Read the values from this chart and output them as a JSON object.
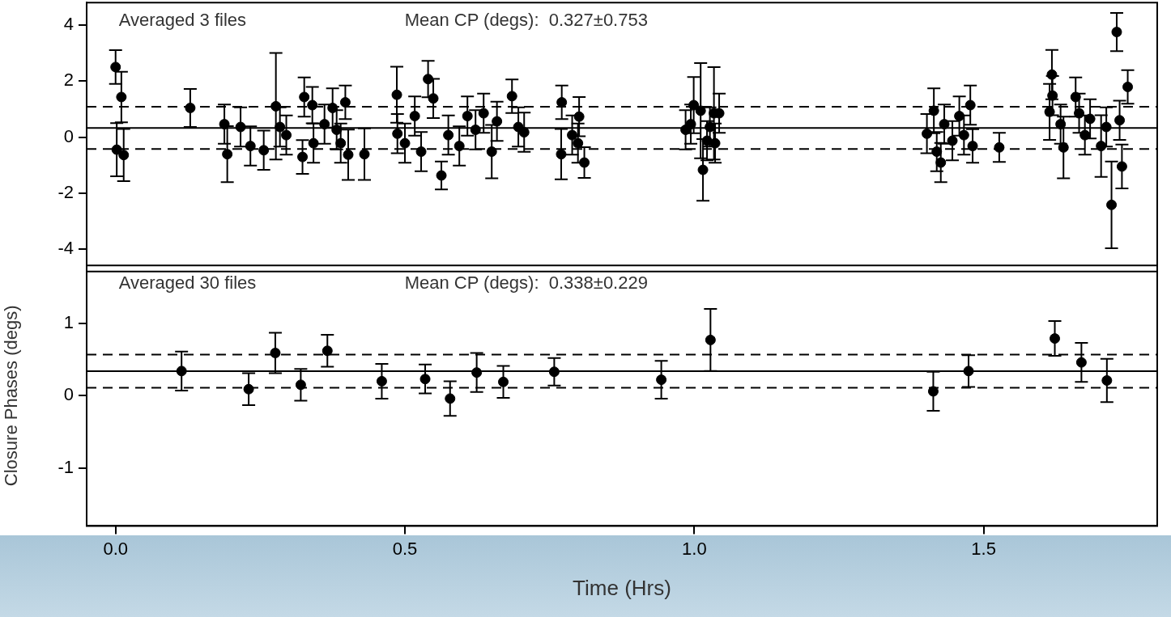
{
  "chart_data": [
    {
      "type": "scatter",
      "color": "#000000",
      "marker": "circle",
      "tick_labels": "y",
      "annotations": [
        "Averaged 3 files",
        "Mean CP (degs):  0.327±0.753"
      ],
      "xlim": [
        -0.05,
        1.8
      ],
      "ylim": [
        -4.8,
        4.8
      ],
      "yticks": [
        -4,
        -2,
        0,
        2,
        4
      ],
      "ref_lines": [
        {
          "axis": "y",
          "value": 0.327,
          "line_style": "solid",
          "color": "#000000"
        },
        {
          "axis": "y",
          "value": 1.08,
          "line_style": "dashed",
          "color": "#000000"
        },
        {
          "axis": "y",
          "value": -0.426,
          "line_style": "dashed",
          "color": "#000000"
        }
      ],
      "x": [
        0.0,
        0.01,
        0.002,
        0.014,
        0.129,
        0.193,
        0.188,
        0.216,
        0.233,
        0.256,
        0.277,
        0.284,
        0.295,
        0.326,
        0.323,
        0.34,
        0.342,
        0.361,
        0.375,
        0.382,
        0.389,
        0.397,
        0.402,
        0.43,
        0.486,
        0.54,
        0.549,
        0.487,
        0.5,
        0.517,
        0.528,
        0.563,
        0.575,
        0.594,
        0.608,
        0.622,
        0.636,
        0.65,
        0.659,
        0.685,
        0.696,
        0.706,
        0.771,
        0.77,
        0.801,
        0.789,
        0.81,
        0.799,
        1.015,
        0.999,
        1.011,
        1.034,
        0.985,
        0.994,
        1.027,
        1.043,
        1.022,
        1.036,
        1.402,
        1.414,
        1.419,
        1.426,
        1.432,
        1.446,
        1.458,
        1.466,
        1.477,
        1.481,
        1.527,
        1.618,
        1.619,
        1.614,
        1.638,
        1.633,
        1.659,
        1.665,
        1.675,
        1.684,
        1.703,
        1.712,
        1.721,
        1.73,
        1.735,
        1.739,
        1.749
      ],
      "values": [
        2.5,
        1.43,
        -0.45,
        -0.64,
        1.04,
        -0.61,
        0.46,
        0.36,
        -0.32,
        -0.47,
        1.1,
        0.36,
        0.07,
        1.43,
        -0.71,
        1.14,
        -0.22,
        0.46,
        1.04,
        0.26,
        -0.22,
        1.24,
        -0.63,
        -0.61,
        1.51,
        2.07,
        1.38,
        0.12,
        -0.22,
        0.75,
        -0.52,
        -1.37,
        0.07,
        -0.32,
        0.75,
        0.26,
        0.85,
        -0.52,
        0.56,
        1.46,
        0.36,
        0.17,
        1.24,
        -0.61,
        0.73,
        0.07,
        -0.91,
        -0.22,
        -1.17,
        1.14,
        0.94,
        0.85,
        0.26,
        0.46,
        0.36,
        0.85,
        -0.13,
        -0.22,
        0.12,
        0.94,
        -0.52,
        -0.91,
        0.46,
        -0.13,
        0.75,
        0.07,
        1.14,
        -0.32,
        -0.37,
        2.23,
        1.48,
        0.9,
        -0.37,
        0.46,
        1.43,
        0.85,
        0.07,
        0.65,
        -0.32,
        0.36,
        -2.42,
        3.75,
        0.6,
        -1.05,
        1.79
      ],
      "errors": [
        0.6,
        0.9,
        0.95,
        0.93,
        0.68,
        1.0,
        0.7,
        0.7,
        0.7,
        0.7,
        1.9,
        0.7,
        0.7,
        0.7,
        0.6,
        0.65,
        0.7,
        0.7,
        0.7,
        0.7,
        0.7,
        0.6,
        0.9,
        0.92,
        1.0,
        0.65,
        0.7,
        0.7,
        0.7,
        0.7,
        0.7,
        0.5,
        0.7,
        0.7,
        0.7,
        0.7,
        0.7,
        0.95,
        0.7,
        0.6,
        0.7,
        0.7,
        0.6,
        0.9,
        0.7,
        0.7,
        0.55,
        0.7,
        1.1,
        1.0,
        1.7,
        1.65,
        0.7,
        0.7,
        0.7,
        0.7,
        0.7,
        0.7,
        0.7,
        0.8,
        0.7,
        0.7,
        0.7,
        0.7,
        0.7,
        0.7,
        0.7,
        0.6,
        0.52,
        0.88,
        0.7,
        1.0,
        1.1,
        0.7,
        0.7,
        0.7,
        0.7,
        0.7,
        1.1,
        0.7,
        1.55,
        0.68,
        0.7,
        0.78,
        0.6
      ]
    },
    {
      "type": "scatter",
      "color": "#000000",
      "marker": "circle",
      "ylabel": "Closure Phases (degs)",
      "xlabel": "Time (Hrs)",
      "annotations": [
        "Averaged 30 files",
        "Mean CP (degs):  0.338±0.229"
      ],
      "xlim": [
        -0.05,
        1.8
      ],
      "xticks": [
        {
          "value": 0,
          "label": "0.0"
        },
        0.5,
        {
          "value": 1,
          "label": "1.0"
        },
        1.5
      ],
      "ylim": [
        -1.8,
        1.8
      ],
      "yticks": [
        -1,
        0,
        1
      ],
      "ref_lines": [
        {
          "axis": "y",
          "value": 0.338,
          "line_style": "solid",
          "color": "#000000"
        },
        {
          "axis": "y",
          "value": 0.567,
          "line_style": "dashed",
          "color": "#000000"
        },
        {
          "axis": "y",
          "value": 0.109,
          "line_style": "dashed",
          "color": "#000000"
        }
      ],
      "x": [
        0.114,
        0.23,
        0.276,
        0.32,
        0.366,
        0.46,
        0.535,
        0.578,
        0.624,
        0.67,
        0.758,
        0.943,
        1.028,
        1.413,
        1.474,
        1.623,
        1.669,
        1.713
      ],
      "values": [
        0.34,
        0.09,
        0.59,
        0.15,
        0.62,
        0.2,
        0.23,
        -0.04,
        0.32,
        0.19,
        0.33,
        0.22,
        0.77,
        0.06,
        0.34,
        0.79,
        0.46,
        0.21
      ],
      "errors": [
        0.27,
        0.22,
        0.28,
        0.22,
        0.22,
        0.24,
        0.2,
        0.24,
        0.27,
        0.22,
        0.19,
        0.26,
        0.43,
        0.27,
        0.22,
        0.24,
        0.27,
        0.3
      ]
    }
  ]
}
